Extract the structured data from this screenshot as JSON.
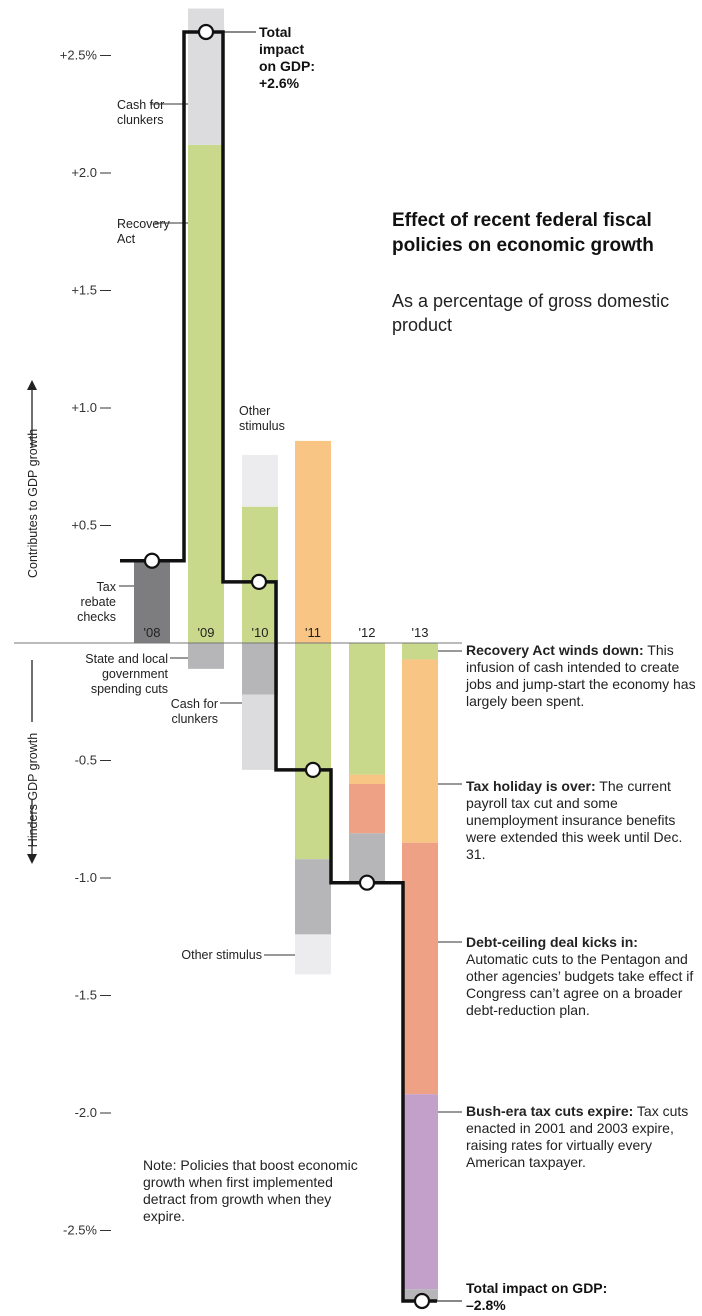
{
  "title": "Effect of recent federal fiscal policies on economic growth",
  "subtitle": "As a percentage of gross domestic product",
  "note": "Note: Policies that boost economic growth when first implemented detract from growth when they expire.",
  "axis": {
    "up_label": "Contributes to GDP growth",
    "down_label": "Hinders GDP growth",
    "ticks": [
      {
        "value": 2.5,
        "label": "+2.5%"
      },
      {
        "value": 2.0,
        "label": "+2.0"
      },
      {
        "value": 1.5,
        "label": "+1.5"
      },
      {
        "value": 1.0,
        "label": "+1.0"
      },
      {
        "value": 0.5,
        "label": "+0.5"
      },
      {
        "value": -0.5,
        "label": "-0.5"
      },
      {
        "value": -1.0,
        "label": "-1.0"
      },
      {
        "value": -1.5,
        "label": "-1.5"
      },
      {
        "value": -2.0,
        "label": "-2.0"
      },
      {
        "value": -2.5,
        "label": "-2.5%"
      }
    ]
  },
  "top_total": {
    "line1": "Total",
    "line2": "impact",
    "line3": "on GDP:",
    "line4": "+2.6%"
  },
  "bottom_total": {
    "line1": "Total impact on GDP:",
    "line2": "–2.8%"
  },
  "colors": {
    "tax_rebate": "#7d7d80",
    "recovery_act": "#c9d98c",
    "cash_for_clunkers": "#dcdcdf",
    "other_stimulus": "#ececee",
    "tax_holiday": "#f8c584",
    "state_local": "#b6b6b9",
    "tax_holiday_dark": "#eea185",
    "debt_ceiling": "#eea185",
    "bush_tax": "#c3a0c9"
  },
  "chart_data": {
    "type": "bar",
    "categories": [
      "'08",
      "'09",
      "'10",
      "'11",
      "'12",
      "'13"
    ],
    "ylim": [
      -2.8,
      2.7
    ],
    "bars": [
      {
        "year": "'08",
        "segments": [
          {
            "name": "Tax rebate checks",
            "color": "tax_rebate",
            "from": 0,
            "to": 0.35
          }
        ]
      },
      {
        "year": "'09",
        "segments": [
          {
            "name": "Recovery Act",
            "color": "recovery_act",
            "from": 0,
            "to": 2.12
          },
          {
            "name": "Cash for clunkers",
            "color": "cash_for_clunkers",
            "from": 2.12,
            "to": 2.7
          },
          {
            "name": "State and local government spending cuts",
            "color": "state_local",
            "from": 0,
            "to": -0.11
          }
        ]
      },
      {
        "year": "'10",
        "segments": [
          {
            "name": "Recovery Act",
            "color": "recovery_act",
            "from": 0,
            "to": 0.58
          },
          {
            "name": "Other stimulus",
            "color": "other_stimulus",
            "from": 0.58,
            "to": 0.8
          },
          {
            "name": "State and local government spending cuts",
            "color": "state_local",
            "from": 0,
            "to": -0.22
          },
          {
            "name": "Cash for clunkers",
            "color": "cash_for_clunkers",
            "from": -0.22,
            "to": -0.54
          }
        ]
      },
      {
        "year": "'11",
        "segments": [
          {
            "name": "Tax holiday",
            "color": "tax_holiday",
            "from": 0,
            "to": 0.86
          },
          {
            "name": "Recovery Act",
            "color": "recovery_act",
            "from": 0,
            "to": -0.92
          },
          {
            "name": "State and local government spending cuts",
            "color": "state_local",
            "from": -0.92,
            "to": -1.24
          },
          {
            "name": "Other stimulus",
            "color": "other_stimulus",
            "from": -1.24,
            "to": -1.41
          }
        ]
      },
      {
        "year": "'12",
        "segments": [
          {
            "name": "Recovery Act",
            "color": "recovery_act",
            "from": 0,
            "to": -0.56
          },
          {
            "name": "Tax holiday",
            "color": "tax_holiday",
            "from": -0.56,
            "to": -0.6
          },
          {
            "name": "Tax holiday (expired)",
            "color": "tax_holiday_dark",
            "from": -0.6,
            "to": -0.81
          },
          {
            "name": "State and local government spending cuts",
            "color": "state_local",
            "from": -0.81,
            "to": -1.02
          }
        ]
      },
      {
        "year": "'13",
        "segments": [
          {
            "name": "Recovery Act",
            "color": "recovery_act",
            "from": 0,
            "to": -0.07
          },
          {
            "name": "Tax holiday",
            "color": "tax_holiday",
            "from": -0.07,
            "to": -0.85
          },
          {
            "name": "Debt-ceiling deal",
            "color": "debt_ceiling",
            "from": -0.85,
            "to": -1.92
          },
          {
            "name": "Bush-era tax cuts",
            "color": "bush_tax",
            "from": -1.92,
            "to": -2.75
          },
          {
            "name": "State and local government spending cuts",
            "color": "state_local",
            "from": -2.75,
            "to": -2.8
          }
        ]
      }
    ],
    "total_line": [
      0.35,
      2.6,
      0.26,
      -0.54,
      -1.02,
      -2.8
    ]
  },
  "labels": {
    "cash_clunkers_top_1": "Cash for",
    "cash_clunkers_top_2": "clunkers",
    "recovery_1": "Recovery",
    "recovery_2": "Act",
    "other_stim_1": "Other",
    "other_stim_2": "stimulus",
    "tax_rebate_1": "Tax",
    "tax_rebate_2": "rebate",
    "tax_rebate_3": "checks",
    "state_local_1": "State and local",
    "state_local_2": "government",
    "state_local_3": "spending cuts",
    "cash_clunkers_low_1": "Cash for",
    "cash_clunkers_low_2": "clunkers",
    "other_stim_low": "Other stimulus"
  },
  "annotations": [
    {
      "bold": "Recovery Act winds down:",
      "text": " This infusion of cash intended to create jobs and jump-start the economy has largely been spent."
    },
    {
      "bold": "Tax holiday is over:",
      "text": " The current payroll tax cut and some unemployment insurance benefits were extended this week until Dec. 31."
    },
    {
      "bold": "Debt-ceiling deal kicks in:",
      "text": " Automatic cuts to the Pentagon and other agencies’ budgets take effect if Congress can’t agree on a broader debt-reduction plan."
    },
    {
      "bold": "Bush-era tax cuts expire:",
      "text": " Tax cuts enacted in 2001 and 2003 expire, raising rates for virtually every American taxpayer."
    }
  ]
}
